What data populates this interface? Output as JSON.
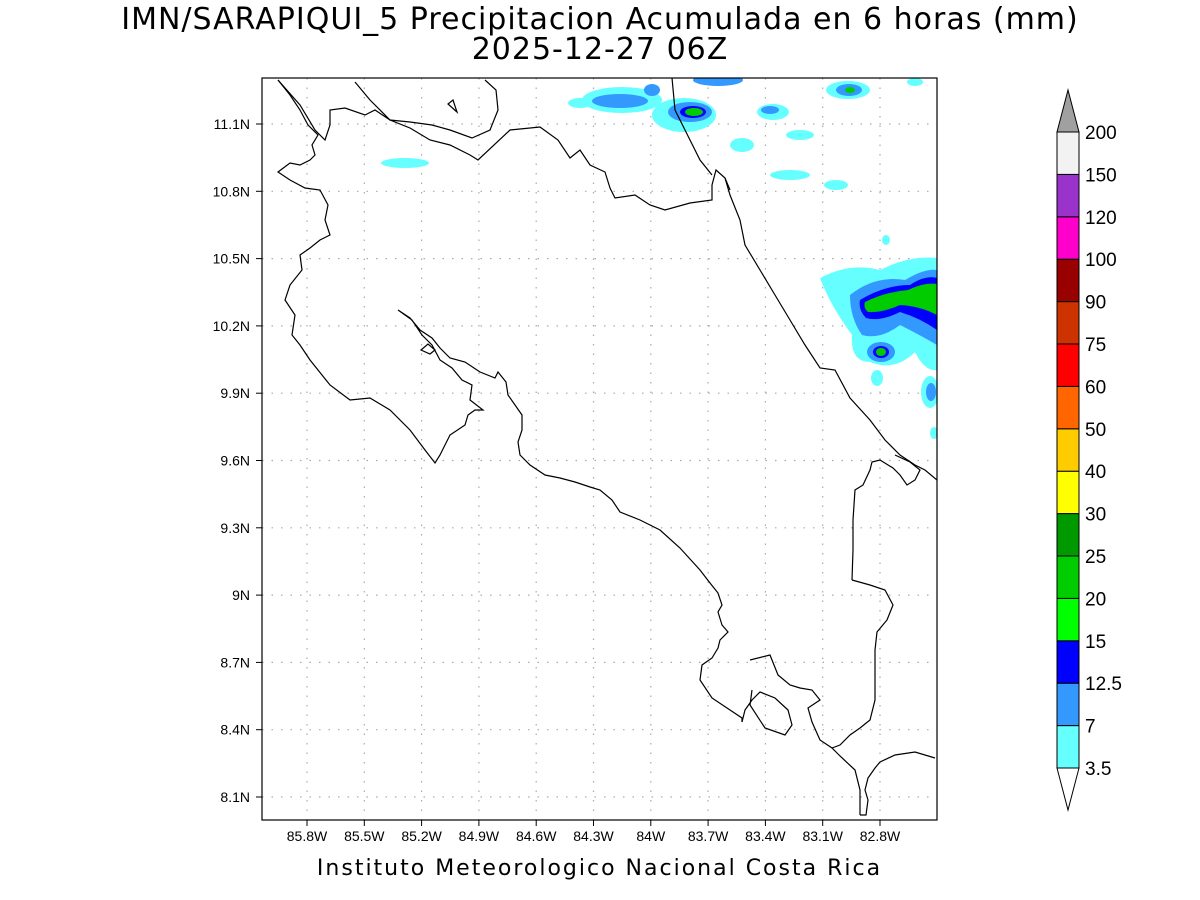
{
  "title": {
    "line1": "IMN/SARAPIQUI_5 Precipitacion Acumulada en 6 horas (mm)",
    "line2": "2025-12-27 06Z"
  },
  "footer": "Instituto Meteorologico Nacional Costa Rica",
  "map": {
    "lon_labels": [
      "85.8W",
      "85.5W",
      "85.2W",
      "84.9W",
      "84.6W",
      "84.3W",
      "84W",
      "83.7W",
      "83.4W",
      "83.1W",
      "82.8W"
    ],
    "lat_labels": [
      "11.1N",
      "10.8N",
      "10.5N",
      "10.2N",
      "9.9N",
      "9.6N",
      "9.3N",
      "9N",
      "8.7N",
      "8.4N",
      "8.1N"
    ],
    "grid": "dotted"
  },
  "colorbar": {
    "levels": [
      "3.5",
      "7",
      "12.5",
      "15",
      "20",
      "25",
      "30",
      "40",
      "50",
      "60",
      "75",
      "90",
      "100",
      "120",
      "150",
      "200"
    ],
    "colors": [
      "#66ffff",
      "#3399ff",
      "#0000ff",
      "#00ff00",
      "#00cc00",
      "#009900",
      "#ffff00",
      "#ffcc00",
      "#ff6600",
      "#ff0000",
      "#cc3300",
      "#990000",
      "#ff00cc",
      "#9933cc",
      "#f2f2f2",
      "#a0a0a0"
    ]
  }
}
